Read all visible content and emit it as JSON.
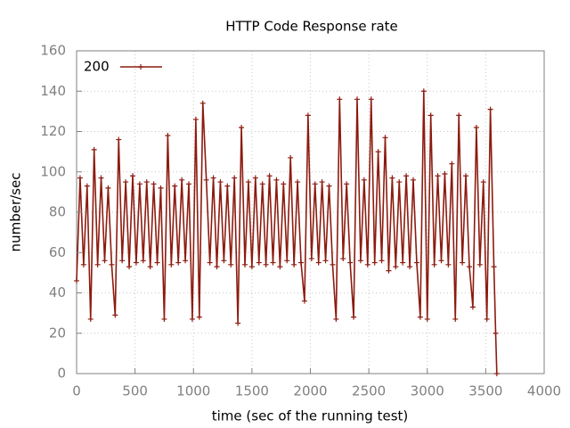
{
  "chart_data": {
    "type": "line",
    "title": "HTTP Code Response rate",
    "x_label": "time (sec of the running test)",
    "y_label": "number/sec",
    "xlim": [
      0,
      4000
    ],
    "xticks": [
      0,
      500,
      1000,
      1500,
      2000,
      2500,
      3000,
      3500,
      4000
    ],
    "ylim": [
      0,
      160
    ],
    "yticks": [
      0,
      20,
      40,
      60,
      80,
      100,
      120,
      140,
      160
    ],
    "grid": true,
    "legend": "top-left",
    "x": [
      0,
      30,
      60,
      90,
      120,
      150,
      180,
      210,
      240,
      270,
      300,
      330,
      360,
      390,
      420,
      450,
      480,
      510,
      540,
      570,
      600,
      630,
      660,
      690,
      720,
      750,
      780,
      810,
      840,
      870,
      900,
      930,
      960,
      990,
      1020,
      1050,
      1080,
      1110,
      1140,
      1170,
      1200,
      1230,
      1260,
      1290,
      1320,
      1350,
      1380,
      1410,
      1440,
      1470,
      1500,
      1530,
      1560,
      1590,
      1620,
      1650,
      1680,
      1710,
      1740,
      1770,
      1800,
      1830,
      1860,
      1890,
      1920,
      1950,
      1980,
      2010,
      2040,
      2070,
      2100,
      2130,
      2160,
      2190,
      2220,
      2250,
      2280,
      2310,
      2340,
      2370,
      2400,
      2430,
      2460,
      2490,
      2520,
      2550,
      2580,
      2610,
      2640,
      2670,
      2700,
      2730,
      2760,
      2790,
      2820,
      2850,
      2880,
      2910,
      2940,
      2970,
      3000,
      3030,
      3060,
      3090,
      3120,
      3150,
      3180,
      3210,
      3240,
      3270,
      3300,
      3330,
      3360,
      3390,
      3420,
      3450,
      3480,
      3510,
      3540,
      3570,
      3585,
      3595
    ],
    "series": [
      {
        "name": "200",
        "color": "#8c1b0f",
        "values": [
          46,
          97,
          54,
          93,
          27,
          111,
          54,
          97,
          56,
          92,
          54,
          29,
          116,
          56,
          95,
          53,
          98,
          55,
          94,
          56,
          95,
          53,
          94,
          55,
          92,
          27,
          118,
          54,
          93,
          55,
          96,
          56,
          94,
          27,
          126,
          28,
          134,
          96,
          55,
          97,
          53,
          95,
          56,
          93,
          54,
          97,
          25,
          122,
          54,
          95,
          53,
          97,
          55,
          94,
          54,
          98,
          55,
          96,
          53,
          94,
          56,
          107,
          54,
          95,
          55,
          36,
          128,
          57,
          94,
          55,
          95,
          56,
          93,
          54,
          27,
          136,
          57,
          94,
          55,
          28,
          136,
          56,
          96,
          54,
          136,
          55,
          110,
          56,
          117,
          51,
          97,
          53,
          95,
          55,
          98,
          53,
          96,
          55,
          28,
          140,
          27,
          128,
          54,
          98,
          56,
          99,
          54,
          104,
          27,
          128,
          55,
          98,
          53,
          33,
          122,
          54,
          95,
          27,
          131,
          53,
          20,
          0
        ]
      }
    ]
  }
}
